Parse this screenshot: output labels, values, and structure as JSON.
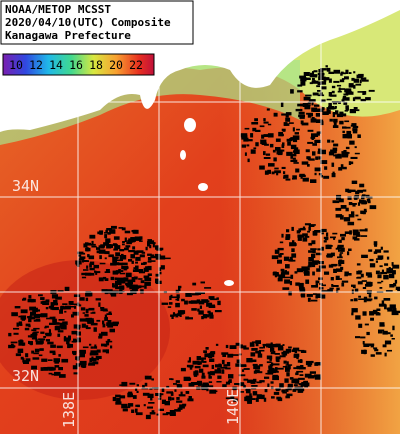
{
  "header": {
    "lines": [
      "NOAA/METOP MCSST",
      "2020/04/10(UTC) Composite",
      "Kanagawa Prefecture"
    ]
  },
  "colorbar": {
    "labels": [
      "10",
      "12",
      "14",
      "16",
      "18",
      "20",
      "22"
    ]
  },
  "latitude_labels": [
    "34N",
    "32N"
  ],
  "longitude_labels": [
    "138E",
    "140E"
  ]
}
